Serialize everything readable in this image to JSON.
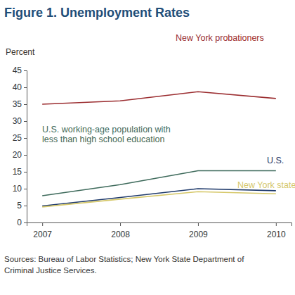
{
  "chart_data": {
    "type": "line",
    "title": "Figure 1. Unemployment Rates",
    "y_label": "Percent",
    "source": [
      "Sources: Bureau of Labor Statistics; New York State Department of",
      "Criminal Justice Services."
    ],
    "x": [
      2007,
      2008,
      2009,
      2010
    ],
    "xlim": [
      2006.8,
      2010.2
    ],
    "xticks": [
      2007,
      2008,
      2009,
      2010
    ],
    "ylim": [
      0,
      45
    ],
    "yticks": [
      0,
      5,
      10,
      15,
      20,
      25,
      30,
      35,
      40,
      45
    ],
    "grid": false,
    "series": [
      {
        "name": "New York probationers",
        "color": "#9b2d30",
        "values": [
          35,
          36,
          38.7,
          36.7
        ]
      },
      {
        "name": "U.S. working-age population with less than high school education",
        "color": "#3f6b5c",
        "values": [
          7.9,
          11.2,
          15.3,
          15.3
        ]
      },
      {
        "name": "U.S.",
        "color": "#1f3a6b",
        "values": [
          4.9,
          7.4,
          10,
          9.4
        ]
      },
      {
        "name": "New York state",
        "color": "#d6c86a",
        "values": [
          4.6,
          6.9,
          9.1,
          8.5
        ]
      }
    ]
  }
}
